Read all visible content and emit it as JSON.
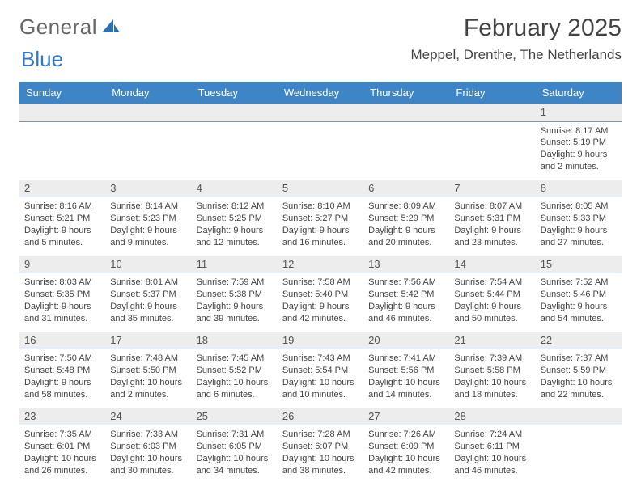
{
  "logo": {
    "text1": "General",
    "text2": "Blue"
  },
  "title": "February 2025",
  "location": "Meppel, Drenthe, The Netherlands",
  "colors": {
    "header_bg": "#3d85c6",
    "header_text": "#ffffff",
    "numrow_bg": "#ededed",
    "numrow_border": "#7c94ad",
    "text": "#444444"
  },
  "dayNames": [
    "Sunday",
    "Monday",
    "Tuesday",
    "Wednesday",
    "Thursday",
    "Friday",
    "Saturday"
  ],
  "weeks": [
    {
      "nums": [
        "",
        "",
        "",
        "",
        "",
        "",
        "1"
      ],
      "info": [
        "",
        "",
        "",
        "",
        "",
        "",
        "Sunrise: 8:17 AM\nSunset: 5:19 PM\nDaylight: 9 hours and 2 minutes."
      ]
    },
    {
      "nums": [
        "2",
        "3",
        "4",
        "5",
        "6",
        "7",
        "8"
      ],
      "info": [
        "Sunrise: 8:16 AM\nSunset: 5:21 PM\nDaylight: 9 hours and 5 minutes.",
        "Sunrise: 8:14 AM\nSunset: 5:23 PM\nDaylight: 9 hours and 9 minutes.",
        "Sunrise: 8:12 AM\nSunset: 5:25 PM\nDaylight: 9 hours and 12 minutes.",
        "Sunrise: 8:10 AM\nSunset: 5:27 PM\nDaylight: 9 hours and 16 minutes.",
        "Sunrise: 8:09 AM\nSunset: 5:29 PM\nDaylight: 9 hours and 20 minutes.",
        "Sunrise: 8:07 AM\nSunset: 5:31 PM\nDaylight: 9 hours and 23 minutes.",
        "Sunrise: 8:05 AM\nSunset: 5:33 PM\nDaylight: 9 hours and 27 minutes."
      ]
    },
    {
      "nums": [
        "9",
        "10",
        "11",
        "12",
        "13",
        "14",
        "15"
      ],
      "info": [
        "Sunrise: 8:03 AM\nSunset: 5:35 PM\nDaylight: 9 hours and 31 minutes.",
        "Sunrise: 8:01 AM\nSunset: 5:37 PM\nDaylight: 9 hours and 35 minutes.",
        "Sunrise: 7:59 AM\nSunset: 5:38 PM\nDaylight: 9 hours and 39 minutes.",
        "Sunrise: 7:58 AM\nSunset: 5:40 PM\nDaylight: 9 hours and 42 minutes.",
        "Sunrise: 7:56 AM\nSunset: 5:42 PM\nDaylight: 9 hours and 46 minutes.",
        "Sunrise: 7:54 AM\nSunset: 5:44 PM\nDaylight: 9 hours and 50 minutes.",
        "Sunrise: 7:52 AM\nSunset: 5:46 PM\nDaylight: 9 hours and 54 minutes."
      ]
    },
    {
      "nums": [
        "16",
        "17",
        "18",
        "19",
        "20",
        "21",
        "22"
      ],
      "info": [
        "Sunrise: 7:50 AM\nSunset: 5:48 PM\nDaylight: 9 hours and 58 minutes.",
        "Sunrise: 7:48 AM\nSunset: 5:50 PM\nDaylight: 10 hours and 2 minutes.",
        "Sunrise: 7:45 AM\nSunset: 5:52 PM\nDaylight: 10 hours and 6 minutes.",
        "Sunrise: 7:43 AM\nSunset: 5:54 PM\nDaylight: 10 hours and 10 minutes.",
        "Sunrise: 7:41 AM\nSunset: 5:56 PM\nDaylight: 10 hours and 14 minutes.",
        "Sunrise: 7:39 AM\nSunset: 5:58 PM\nDaylight: 10 hours and 18 minutes.",
        "Sunrise: 7:37 AM\nSunset: 5:59 PM\nDaylight: 10 hours and 22 minutes."
      ]
    },
    {
      "nums": [
        "23",
        "24",
        "25",
        "26",
        "27",
        "28",
        ""
      ],
      "info": [
        "Sunrise: 7:35 AM\nSunset: 6:01 PM\nDaylight: 10 hours and 26 minutes.",
        "Sunrise: 7:33 AM\nSunset: 6:03 PM\nDaylight: 10 hours and 30 minutes.",
        "Sunrise: 7:31 AM\nSunset: 6:05 PM\nDaylight: 10 hours and 34 minutes.",
        "Sunrise: 7:28 AM\nSunset: 6:07 PM\nDaylight: 10 hours and 38 minutes.",
        "Sunrise: 7:26 AM\nSunset: 6:09 PM\nDaylight: 10 hours and 42 minutes.",
        "Sunrise: 7:24 AM\nSunset: 6:11 PM\nDaylight: 10 hours and 46 minutes.",
        ""
      ]
    }
  ]
}
